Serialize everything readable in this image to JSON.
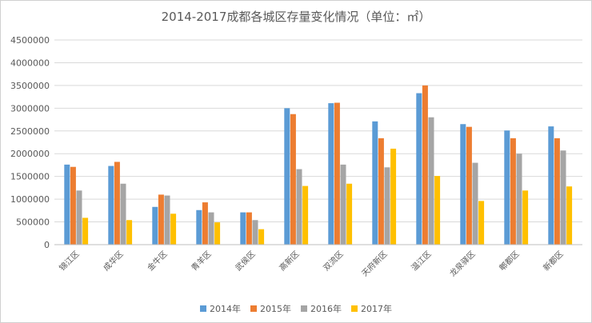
{
  "chart_data": {
    "type": "bar",
    "title": "2014-2017成都各城区存量变化情况（单位：㎡）",
    "xlabel": "",
    "ylabel": "",
    "ylim": [
      0,
      4500000
    ],
    "ytick_step": 500000,
    "ytick_labels": [
      "0",
      "500000",
      "1000000",
      "1500000",
      "2000000",
      "2500000",
      "3000000",
      "3500000",
      "4000000",
      "4500000"
    ],
    "categories": [
      "锦江区",
      "成华区",
      "金牛区",
      "青羊区",
      "武侯区",
      "高新区",
      "双流区",
      "天府新区",
      "温江区",
      "龙泉驿区",
      "郫都区",
      "新都区"
    ],
    "series": [
      {
        "name": "2014年",
        "color": "#5b9bd5",
        "values": [
          1760000,
          1730000,
          830000,
          760000,
          710000,
          3000000,
          3110000,
          2710000,
          3330000,
          2650000,
          2510000,
          2600000
        ]
      },
      {
        "name": "2015年",
        "color": "#ed7d31",
        "values": [
          1710000,
          1820000,
          1100000,
          930000,
          710000,
          2870000,
          3120000,
          2340000,
          3500000,
          2590000,
          2340000,
          2340000
        ]
      },
      {
        "name": "2016年",
        "color": "#a5a5a5",
        "values": [
          1190000,
          1340000,
          1080000,
          710000,
          540000,
          1660000,
          1760000,
          1700000,
          2800000,
          1800000,
          2000000,
          2070000
        ]
      },
      {
        "name": "2017年",
        "color": "#ffc000",
        "values": [
          590000,
          540000,
          680000,
          490000,
          340000,
          1290000,
          1340000,
          2110000,
          1510000,
          960000,
          1190000,
          1280000
        ]
      }
    ],
    "grid": true,
    "legend_position": "bottom"
  }
}
